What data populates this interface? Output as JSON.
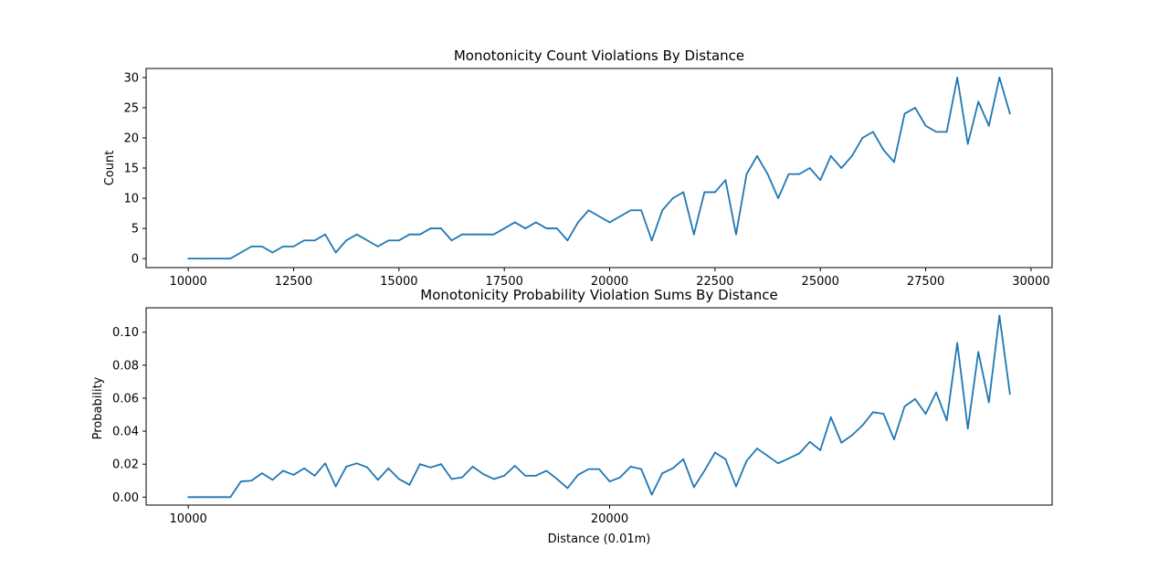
{
  "chart_data": [
    {
      "type": "line",
      "title": "Monotonicity Count Violations By Distance",
      "xlabel": "",
      "ylabel": "Count",
      "xlim": [
        9000,
        30500
      ],
      "ylim": [
        -1.5,
        31.5
      ],
      "xticks": [
        10000,
        12500,
        15000,
        17500,
        20000,
        22500,
        25000,
        27500,
        30000
      ],
      "xtick_labels": [
        "10000",
        "12500",
        "15000",
        "17500",
        "20000",
        "22500",
        "25000",
        "27500",
        "30000"
      ],
      "yticks": [
        0,
        5,
        10,
        15,
        20,
        25,
        30
      ],
      "ytick_labels": [
        "0",
        "5",
        "10",
        "15",
        "20",
        "25",
        "30"
      ],
      "grid": false,
      "color": "#1f77b4",
      "x": [
        10000,
        10250,
        10500,
        10750,
        11000,
        11250,
        11500,
        11750,
        12000,
        12250,
        12500,
        12750,
        13000,
        13250,
        13500,
        13750,
        14000,
        14250,
        14500,
        14750,
        15000,
        15250,
        15500,
        15750,
        16000,
        16250,
        16500,
        16750,
        17000,
        17250,
        17500,
        17750,
        18000,
        18250,
        18500,
        18750,
        19000,
        19250,
        19500,
        19750,
        20000,
        20250,
        20500,
        20750,
        21000,
        21250,
        21500,
        21750,
        22000,
        22250,
        22500,
        22750,
        23000,
        23250,
        23500,
        23750,
        24000,
        24250,
        24500,
        24750,
        25000,
        25250,
        25500,
        25750,
        26000,
        26250,
        26500,
        26750,
        27000,
        27250,
        27500,
        27750,
        28000,
        28250,
        28500,
        28750,
        29000,
        29250,
        29500
      ],
      "values": [
        0,
        0,
        0,
        0,
        0,
        1,
        2,
        2,
        1,
        2,
        2,
        3,
        3,
        4,
        1,
        3,
        4,
        3,
        2,
        3,
        3,
        4,
        4,
        5,
        5,
        3,
        4,
        4,
        4,
        4,
        5,
        6,
        5,
        6,
        5,
        5,
        3,
        6,
        8,
        7,
        6,
        7,
        8,
        8,
        3,
        8,
        10,
        11,
        4,
        11,
        11,
        13,
        4,
        14,
        17,
        14,
        10,
        14,
        14,
        15,
        13,
        17,
        15,
        17,
        20,
        21,
        18,
        16,
        24,
        25,
        22,
        21,
        21,
        30,
        19,
        26,
        22,
        30,
        24
      ]
    },
    {
      "type": "line",
      "title": "Monotonicity Probability Violation Sums By Distance",
      "xlabel": "Distance (0.01m)",
      "ylabel": "Probability",
      "xlim": [
        9000,
        30500
      ],
      "ylim": [
        -0.0048,
        0.1148
      ],
      "xticks": [
        10000,
        20000
      ],
      "xtick_labels": [
        "10000",
        "20000"
      ],
      "yticks": [
        0,
        0.02,
        0.04,
        0.06,
        0.08,
        0.1
      ],
      "ytick_labels": [
        "0.00",
        "0.02",
        "0.04",
        "0.06",
        "0.08",
        "0.10"
      ],
      "grid": false,
      "color": "#1f77b4",
      "x": [
        10000,
        10250,
        10500,
        10750,
        11000,
        11250,
        11500,
        11750,
        12000,
        12250,
        12500,
        12750,
        13000,
        13250,
        13500,
        13750,
        14000,
        14250,
        14500,
        14750,
        15000,
        15250,
        15500,
        15750,
        16000,
        16250,
        16500,
        16750,
        17000,
        17250,
        17500,
        17750,
        18000,
        18250,
        18500,
        18750,
        19000,
        19250,
        19500,
        19750,
        20000,
        20250,
        20500,
        20750,
        21000,
        21250,
        21500,
        21750,
        22000,
        22250,
        22500,
        22750,
        23000,
        23250,
        23500,
        23750,
        24000,
        24250,
        24500,
        24750,
        25000,
        25250,
        25500,
        25750,
        26000,
        26250,
        26500,
        26750,
        27000,
        27250,
        27500,
        27750,
        28000,
        28250,
        28500,
        28750,
        29000,
        29250,
        29500
      ],
      "values": [
        0,
        0,
        0,
        0,
        0,
        0.0095,
        0.01,
        0.0145,
        0.0105,
        0.016,
        0.0135,
        0.0175,
        0.013,
        0.0205,
        0.0065,
        0.0185,
        0.0205,
        0.018,
        0.0105,
        0.0175,
        0.011,
        0.0075,
        0.02,
        0.018,
        0.02,
        0.011,
        0.012,
        0.0185,
        0.014,
        0.011,
        0.013,
        0.019,
        0.013,
        0.013,
        0.016,
        0.011,
        0.0055,
        0.0135,
        0.017,
        0.017,
        0.0095,
        0.012,
        0.0185,
        0.017,
        0.0015,
        0.0145,
        0.0175,
        0.023,
        0.006,
        0.016,
        0.027,
        0.023,
        0.0065,
        0.022,
        0.0295,
        0.025,
        0.0205,
        0.0235,
        0.0265,
        0.0335,
        0.0285,
        0.0485,
        0.033,
        0.0375,
        0.0435,
        0.0515,
        0.0505,
        0.035,
        0.055,
        0.0595,
        0.0505,
        0.0635,
        0.0465,
        0.0935,
        0.0415,
        0.088,
        0.0575,
        0.11,
        0.0625
      ]
    }
  ]
}
